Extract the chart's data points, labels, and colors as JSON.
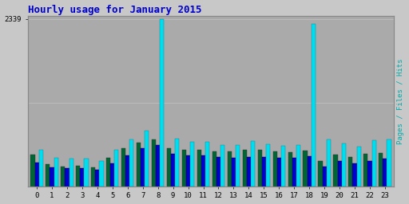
{
  "title": "Hourly usage for January 2015",
  "ylabel_right": "Pages / Files / Hits",
  "hours": [
    0,
    1,
    2,
    3,
    4,
    5,
    6,
    7,
    8,
    9,
    10,
    11,
    12,
    13,
    14,
    15,
    16,
    17,
    18,
    19,
    20,
    21,
    22,
    23
  ],
  "pages": [
    440,
    310,
    280,
    290,
    270,
    400,
    530,
    610,
    660,
    530,
    510,
    510,
    490,
    490,
    510,
    510,
    490,
    480,
    500,
    350,
    440,
    410,
    450,
    470
  ],
  "files": [
    330,
    270,
    250,
    250,
    230,
    320,
    430,
    530,
    580,
    450,
    430,
    430,
    410,
    400,
    410,
    410,
    400,
    400,
    420,
    280,
    350,
    320,
    360,
    390
  ],
  "hits": [
    510,
    400,
    390,
    390,
    360,
    510,
    650,
    780,
    2339,
    670,
    620,
    620,
    580,
    580,
    630,
    590,
    570,
    580,
    2270,
    660,
    600,
    560,
    640,
    660
  ],
  "pages_color": "#006633",
  "files_color": "#0000cc",
  "hits_color": "#00ddee",
  "bg_color": "#c8c8c8",
  "plot_bg_color": "#aaaaaa",
  "title_color": "#0000cc",
  "ylabel_color": "#00aaaa",
  "grid_color": "#bbbbbb",
  "ymax": 2339,
  "ytick_label": "2339",
  "bar_width": 0.27,
  "figwidth": 5.12,
  "figheight": 2.56,
  "dpi": 100
}
